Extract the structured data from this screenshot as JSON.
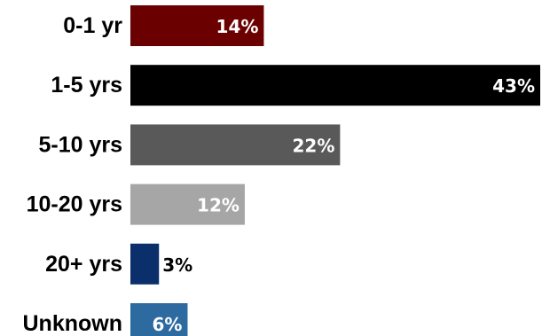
{
  "chart_data": {
    "type": "bar",
    "orientation": "horizontal",
    "categories": [
      "0-1 yr",
      "1-5 yrs",
      "5-10 yrs",
      "10-20 yrs",
      "20+ yrs",
      "Unknown"
    ],
    "values": [
      14,
      43,
      22,
      12,
      3,
      6
    ],
    "value_labels": [
      "14%",
      "43%",
      "22%",
      "12%",
      "3%",
      "6%"
    ],
    "colors": [
      "#6b0000",
      "#000000",
      "#595959",
      "#a6a6a6",
      "#0b2f6b",
      "#2c6aa0"
    ],
    "label_colors": [
      "#ffffff",
      "#ffffff",
      "#ffffff",
      "#ffffff",
      "#000000",
      "#ffffff"
    ],
    "xlim": [
      0,
      43
    ],
    "grid": false,
    "legend": "none",
    "title": "",
    "xlabel": "",
    "ylabel": ""
  }
}
